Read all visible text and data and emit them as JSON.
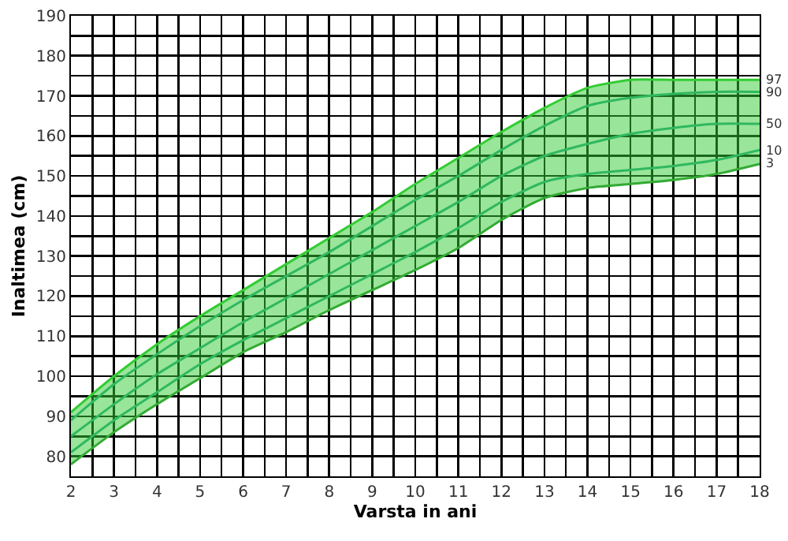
{
  "chart_data": {
    "type": "line",
    "xlabel": "Varsta in ani",
    "ylabel": "Inaltimea (cm)",
    "x": [
      2,
      3,
      4,
      5,
      6,
      7,
      8,
      9,
      10,
      11,
      12,
      13,
      14,
      15,
      16,
      17,
      18
    ],
    "series": [
      {
        "name": "97",
        "type": "area",
        "color": "#33cc33",
        "values": [
          91,
          100,
          108,
          115,
          121.5,
          128,
          134.5,
          141,
          148,
          154.5,
          161,
          167,
          172,
          174,
          174,
          174,
          174
        ]
      },
      {
        "name": "90",
        "color": "#2aa58a",
        "values": [
          89,
          98,
          105.5,
          112.5,
          119,
          125,
          131,
          137.5,
          144,
          150,
          156.5,
          162.5,
          167.5,
          169.5,
          170.5,
          171,
          171
        ]
      },
      {
        "name": "50",
        "color": "#2aa58a",
        "values": [
          85,
          93,
          100.5,
          107,
          113.5,
          119.5,
          125.5,
          131.5,
          137.5,
          143.5,
          150,
          155,
          158,
          160.5,
          162,
          163,
          163
        ]
      },
      {
        "name": "10",
        "color": "#2aa58a",
        "values": [
          81,
          89,
          96,
          103,
          109,
          114.5,
          120,
          125.5,
          131,
          137,
          143.5,
          148.5,
          150.5,
          151.5,
          152.5,
          154,
          156.5
        ]
      },
      {
        "name": "3",
        "color": "#33aa33",
        "values": [
          78,
          86,
          93,
          99.5,
          106,
          111,
          116.5,
          121.5,
          126.5,
          132,
          139,
          144.5,
          147,
          148,
          149,
          150.5,
          153
        ]
      }
    ],
    "xlim": [
      2,
      18
    ],
    "xticks": [
      2,
      {
        "value": 2.5,
        "label": null
      },
      3,
      {
        "value": 3.5,
        "label": null
      },
      4,
      {
        "value": 4.5,
        "label": null
      },
      5,
      {
        "value": 5.5,
        "label": null
      },
      6,
      {
        "value": 6.5,
        "label": null
      },
      7,
      {
        "value": 7.5,
        "label": null
      },
      8,
      {
        "value": 8.5,
        "label": null
      },
      9,
      {
        "value": 9.5,
        "label": null
      },
      10,
      {
        "value": 10.5,
        "label": null
      },
      11,
      {
        "value": 11.5,
        "label": null
      },
      12,
      {
        "value": 12.5,
        "label": null
      },
      13,
      {
        "value": 13.5,
        "label": null
      },
      14,
      {
        "value": 14.5,
        "label": null
      },
      15,
      {
        "value": 15.5,
        "label": null
      },
      16,
      {
        "value": 16.5,
        "label": null
      },
      17,
      {
        "value": 17.5,
        "label": null
      },
      18
    ],
    "ylim": [
      75,
      190
    ],
    "yticks": [
      {
        "value": 75,
        "label": null
      },
      80,
      {
        "value": 85,
        "label": null
      },
      90,
      {
        "value": 95,
        "label": null
      },
      100,
      {
        "value": 105,
        "label": null
      },
      110,
      {
        "value": 115,
        "label": null
      },
      120,
      {
        "value": 125,
        "label": null
      },
      130,
      {
        "value": 135,
        "label": null
      },
      140,
      {
        "value": 145,
        "label": null
      },
      150,
      {
        "value": 155,
        "label": null
      },
      160,
      {
        "value": 165,
        "label": null
      },
      170,
      {
        "value": 175,
        "label": null
      },
      180,
      {
        "value": 185,
        "label": null
      },
      190
    ],
    "grid": true,
    "legend": false,
    "marker": "none",
    "line_style": "solid"
  }
}
